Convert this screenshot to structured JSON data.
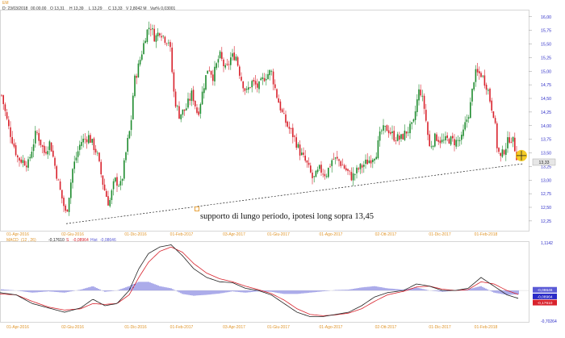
{
  "header": {
    "symbol": "EM",
    "date": "D: 23/03/2018",
    "time": "00.00.00",
    "open": "O 13,31",
    "high": "H 13,39",
    "low": "L 13,29",
    "close": "C 13,33",
    "volume": "V 2,8042 M",
    "var": "Var% 0,03001"
  },
  "macd_header": {
    "label": "MACD",
    "params": "(12 , 26)",
    "value": "-0,17610",
    "signal_label": "S",
    "signal": "-0,08964",
    "hist_label": "Hist",
    "hist": "-0,08646"
  },
  "annotation": "supporto di lungo periodo, ipotesi long sopra 13,45",
  "colors": {
    "up": "#1e8b2e",
    "down": "#d8222c",
    "axis_text": "#2b2bc7",
    "date_text": "#e0962c",
    "macd_line": "#222222",
    "signal_line": "#d8222c",
    "histogram": "#5a5ad6",
    "highlight": "#f2c200"
  },
  "chart_data": [
    {
      "type": "candlestick",
      "title": "",
      "ylim": [
        12.1,
        16.1
      ],
      "yticks": [
        "16,00",
        "15,75",
        "15,50",
        "15,25",
        "15,00",
        "14,75",
        "14,50",
        "14,25",
        "14,00",
        "13,75",
        "13,50",
        "13,25",
        "13,00",
        "12,75",
        "12,50",
        "12,25"
      ],
      "x_labels": [
        "01-Apr-2016",
        "02-Giu-2016",
        "01-Dic-2016",
        "01-Feb-2017",
        "03-Apr-2017",
        "01-Giu-2017",
        "01-Ago-2017",
        "02-Ott-2017",
        "01-Dic-2017",
        "01-Feb-2018"
      ],
      "last_price_label": "13,33",
      "price_path": [
        [
          0,
          14.7
        ],
        [
          10,
          14.0
        ],
        [
          22,
          13.4
        ],
        [
          35,
          13.3
        ],
        [
          45,
          13.9
        ],
        [
          55,
          13.5
        ],
        [
          62,
          13.7
        ],
        [
          73,
          12.9
        ],
        [
          82,
          12.35
        ],
        [
          90,
          13.2
        ],
        [
          100,
          13.7
        ],
        [
          110,
          13.8
        ],
        [
          120,
          13.5
        ],
        [
          128,
          12.9
        ],
        [
          135,
          12.55
        ],
        [
          142,
          13.0
        ],
        [
          150,
          12.9
        ],
        [
          158,
          13.7
        ],
        [
          162,
          14.0
        ],
        [
          166,
          14.8
        ],
        [
          170,
          15.0
        ],
        [
          175,
          15.3
        ],
        [
          181,
          15.7
        ],
        [
          186,
          15.85
        ],
        [
          192,
          15.6
        ],
        [
          198,
          15.75
        ],
        [
          204,
          15.6
        ],
        [
          210,
          15.55
        ],
        [
          216,
          14.5
        ],
        [
          222,
          14.2
        ],
        [
          230,
          14.3
        ],
        [
          238,
          14.6
        ],
        [
          245,
          14.2
        ],
        [
          252,
          14.7
        ],
        [
          258,
          15.1
        ],
        [
          264,
          14.9
        ],
        [
          272,
          15.3
        ],
        [
          280,
          15.0
        ],
        [
          286,
          15.25
        ],
        [
          292,
          15.3
        ],
        [
          298,
          14.9
        ],
        [
          305,
          14.6
        ],
        [
          312,
          14.8
        ],
        [
          320,
          14.7
        ],
        [
          328,
          14.9
        ],
        [
          336,
          15.0
        ],
        [
          342,
          14.6
        ],
        [
          350,
          14.2
        ],
        [
          356,
          14.0
        ],
        [
          364,
          13.8
        ],
        [
          372,
          13.5
        ],
        [
          380,
          13.3
        ],
        [
          388,
          13.0
        ],
        [
          396,
          13.2
        ],
        [
          404,
          13.1
        ],
        [
          412,
          13.4
        ],
        [
          420,
          13.35
        ],
        [
          428,
          13.2
        ],
        [
          436,
          13.05
        ],
        [
          444,
          13.2
        ],
        [
          452,
          13.3
        ],
        [
          460,
          13.4
        ],
        [
          466,
          13.5
        ],
        [
          472,
          13.9
        ],
        [
          480,
          13.95
        ],
        [
          488,
          13.8
        ],
        [
          496,
          13.75
        ],
        [
          504,
          13.9
        ],
        [
          512,
          14.0
        ],
        [
          516,
          14.4
        ],
        [
          520,
          14.7
        ],
        [
          526,
          14.3
        ],
        [
          532,
          13.6
        ],
        [
          540,
          13.8
        ],
        [
          548,
          13.7
        ],
        [
          556,
          13.75
        ],
        [
          564,
          13.7
        ],
        [
          572,
          13.75
        ],
        [
          576,
          14.0
        ],
        [
          582,
          14.3
        ],
        [
          588,
          14.95
        ],
        [
          596,
          14.95
        ],
        [
          604,
          14.7
        ],
        [
          608,
          14.4
        ],
        [
          612,
          14.2
        ],
        [
          616,
          13.6
        ],
        [
          620,
          13.4
        ],
        [
          626,
          13.6
        ],
        [
          632,
          13.8
        ],
        [
          636,
          13.7
        ],
        [
          640,
          13.45
        ],
        [
          642,
          13.33
        ]
      ],
      "support_line": [
        [
          82,
          12.2
        ],
        [
          648,
          13.3
        ]
      ],
      "highlight_point": [
        642,
        13.45
      ]
    },
    {
      "type": "line",
      "title": "MACD",
      "ylim": [
        -0.7026,
        1.1142
      ],
      "yticks": [
        "1,1142",
        "-0,70264"
      ],
      "value_labels": [
        "-0,08646",
        "-0,08964",
        "-0,17610"
      ],
      "x_labels": [
        "01-Apr-2016",
        "02-Giu-2016",
        "01-Dic-2016",
        "01-Feb-2017",
        "03-Apr-2017",
        "01-Giu-2017",
        "01-Ago-2017",
        "02-Ott-2017",
        "01-Dic-2017",
        "01-Feb-2018"
      ],
      "series": [
        {
          "name": "MACD",
          "values": [
            [
              0,
              -0.05
            ],
            [
              20,
              -0.1
            ],
            [
              40,
              -0.3
            ],
            [
              60,
              -0.4
            ],
            [
              80,
              -0.5
            ],
            [
              100,
              -0.4
            ],
            [
              115,
              -0.2
            ],
            [
              130,
              -0.35
            ],
            [
              145,
              -0.3
            ],
            [
              160,
              0.0
            ],
            [
              172,
              0.5
            ],
            [
              184,
              0.85
            ],
            [
              198,
              1.0
            ],
            [
              212,
              1.05
            ],
            [
              226,
              0.8
            ],
            [
              240,
              0.5
            ],
            [
              256,
              0.3
            ],
            [
              272,
              0.2
            ],
            [
              288,
              0.18
            ],
            [
              304,
              0.05
            ],
            [
              320,
              0.0
            ],
            [
              336,
              -0.1
            ],
            [
              352,
              -0.3
            ],
            [
              368,
              -0.5
            ],
            [
              384,
              -0.6
            ],
            [
              400,
              -0.6
            ],
            [
              416,
              -0.55
            ],
            [
              432,
              -0.5
            ],
            [
              448,
              -0.35
            ],
            [
              464,
              -0.15
            ],
            [
              480,
              -0.05
            ],
            [
              500,
              0.0
            ],
            [
              516,
              0.15
            ],
            [
              532,
              0.1
            ],
            [
              548,
              0.0
            ],
            [
              564,
              0.0
            ],
            [
              580,
              0.05
            ],
            [
              596,
              0.3
            ],
            [
              612,
              0.1
            ],
            [
              628,
              -0.1
            ],
            [
              642,
              -0.18
            ]
          ]
        },
        {
          "name": "Signal",
          "values": [
            [
              0,
              -0.08
            ],
            [
              20,
              -0.1
            ],
            [
              40,
              -0.25
            ],
            [
              60,
              -0.38
            ],
            [
              80,
              -0.45
            ],
            [
              100,
              -0.42
            ],
            [
              115,
              -0.3
            ],
            [
              130,
              -0.32
            ],
            [
              145,
              -0.3
            ],
            [
              160,
              -0.1
            ],
            [
              172,
              0.3
            ],
            [
              184,
              0.65
            ],
            [
              198,
              0.9
            ],
            [
              212,
              1.0
            ],
            [
              226,
              0.88
            ],
            [
              240,
              0.62
            ],
            [
              256,
              0.4
            ],
            [
              272,
              0.27
            ],
            [
              288,
              0.2
            ],
            [
              304,
              0.1
            ],
            [
              320,
              0.02
            ],
            [
              336,
              -0.07
            ],
            [
              352,
              -0.22
            ],
            [
              368,
              -0.42
            ],
            [
              384,
              -0.55
            ],
            [
              400,
              -0.58
            ],
            [
              416,
              -0.56
            ],
            [
              432,
              -0.52
            ],
            [
              448,
              -0.42
            ],
            [
              464,
              -0.25
            ],
            [
              480,
              -0.1
            ],
            [
              500,
              -0.02
            ],
            [
              516,
              0.08
            ],
            [
              532,
              0.1
            ],
            [
              548,
              0.03
            ],
            [
              564,
              0.0
            ],
            [
              580,
              0.02
            ],
            [
              596,
              0.2
            ],
            [
              612,
              0.15
            ],
            [
              628,
              0.0
            ],
            [
              642,
              -0.09
            ]
          ]
        }
      ]
    }
  ]
}
